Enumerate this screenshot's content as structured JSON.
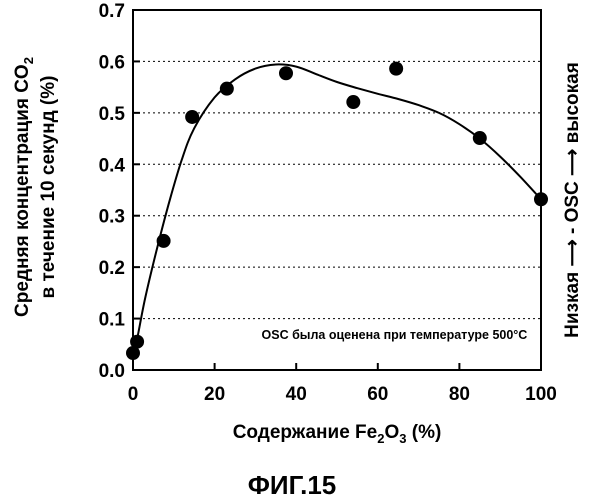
{
  "chart_data": {
    "type": "scatter",
    "xlabel": {
      "prefix": "Содержание Fe",
      "sub1": "2",
      "mid": "O",
      "sub2": "3",
      "suffix": " (%)"
    },
    "ylabel": {
      "line1_prefix": "Средняя концентрация CO",
      "line1_sub": "2",
      "line2": "в течение 10 секунд (%)"
    },
    "right_label": "Низкая ⟶ - OSC ⟶ высокая",
    "annotation": "OSC была оценена при температуре 500°C",
    "figure_caption": "ФИГ.15",
    "xlim": [
      0,
      100
    ],
    "ylim": [
      0,
      0.7
    ],
    "x_ticks": [
      "0",
      "20",
      "40",
      "60",
      "80",
      "100"
    ],
    "y_ticks": [
      "0.0",
      "0.1",
      "0.2",
      "0.3",
      "0.4",
      "0.5",
      "0.6",
      "0.7"
    ],
    "grid": "horizontal dashed",
    "points": [
      {
        "x": 0,
        "y": 0.033
      },
      {
        "x": 1,
        "y": 0.055
      },
      {
        "x": 7.5,
        "y": 0.251
      },
      {
        "x": 14.5,
        "y": 0.492
      },
      {
        "x": 23,
        "y": 0.547
      },
      {
        "x": 37.5,
        "y": 0.577
      },
      {
        "x": 54,
        "y": 0.521
      },
      {
        "x": 64.5,
        "y": 0.586
      },
      {
        "x": 85,
        "y": 0.451
      },
      {
        "x": 100,
        "y": 0.332
      }
    ],
    "trend_curve": [
      [
        0,
        0.03
      ],
      [
        1,
        0.06
      ],
      [
        3,
        0.14
      ],
      [
        6,
        0.24
      ],
      [
        9,
        0.33
      ],
      [
        12,
        0.41
      ],
      [
        15,
        0.47
      ],
      [
        20,
        0.53
      ],
      [
        25,
        0.565
      ],
      [
        30,
        0.586
      ],
      [
        35,
        0.594
      ],
      [
        40,
        0.59
      ],
      [
        45,
        0.575
      ],
      [
        50,
        0.56
      ],
      [
        55,
        0.548
      ],
      [
        60,
        0.537
      ],
      [
        65,
        0.527
      ],
      [
        70,
        0.515
      ],
      [
        75,
        0.5
      ],
      [
        80,
        0.478
      ],
      [
        85,
        0.45
      ],
      [
        90,
        0.415
      ],
      [
        95,
        0.375
      ],
      [
        100,
        0.332
      ]
    ]
  }
}
